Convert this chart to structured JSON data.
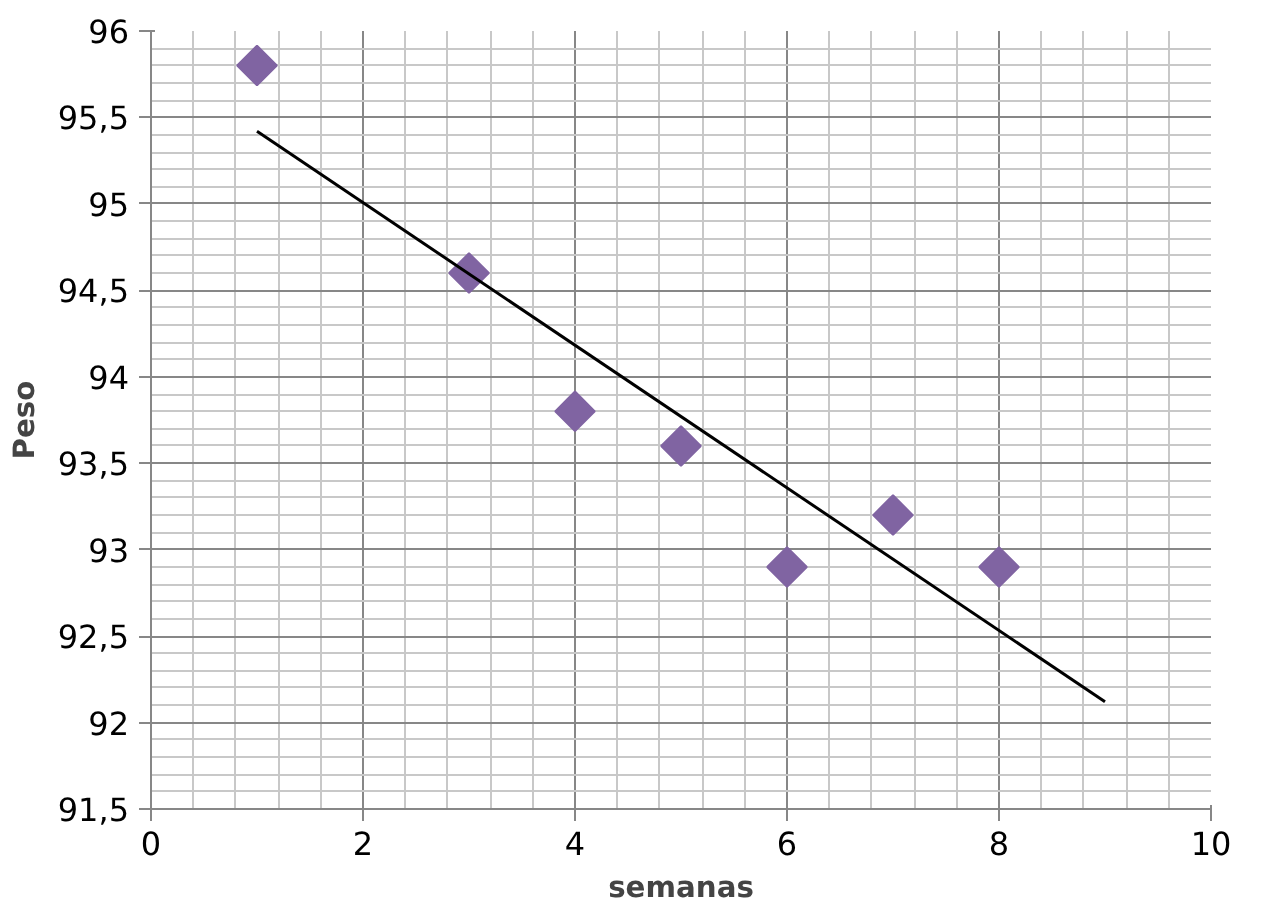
{
  "chart_data": {
    "type": "scatter",
    "xlabel": "semanas",
    "ylabel": "Peso",
    "series": [
      {
        "color": "#8064a2",
        "marker": "diamond",
        "x": [
          1,
          3,
          4,
          5,
          6,
          7,
          8
        ],
        "values": [
          95.8,
          94.6,
          93.8,
          93.6,
          92.9,
          93.2,
          92.9
        ]
      },
      {
        "type": "line",
        "color": "#000000",
        "x": [
          1,
          9
        ],
        "values": [
          95.42,
          92.12
        ]
      }
    ],
    "xlim": [
      0,
      10
    ],
    "xticks": [
      0,
      2,
      4,
      6,
      8,
      10
    ],
    "ylim": [
      91.5,
      96
    ],
    "yticks": [
      {
        "value": 91.5,
        "label": "91,5"
      },
      92,
      {
        "value": 92.5,
        "label": "92,5"
      },
      93,
      {
        "value": 93.5,
        "label": "93,5"
      },
      94,
      {
        "value": 94.5,
        "label": "94,5"
      },
      95,
      {
        "value": 95.5,
        "label": "95,5"
      },
      96
    ],
    "grid": true
  }
}
